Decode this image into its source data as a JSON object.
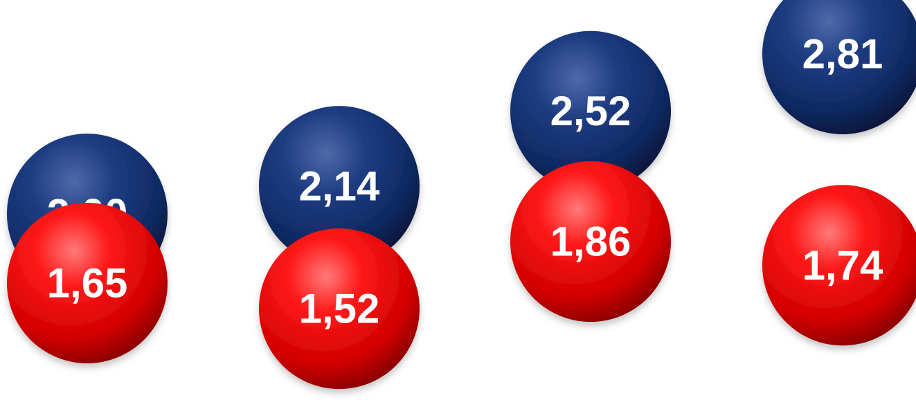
{
  "chart_data": {
    "type": "scatter",
    "categories": [
      "",
      "",
      "",
      ""
    ],
    "series": [
      {
        "values": [
          2.0,
          2.14,
          2.52,
          2.81
        ],
        "labels": [
          "2,00",
          "2,14",
          "2,52",
          "2,81"
        ],
        "color": "#0f2a63"
      },
      {
        "values": [
          1.65,
          1.52,
          1.86,
          1.74
        ],
        "labels": [
          "1,65",
          "1,52",
          "1,86",
          "1,74"
        ],
        "color": "#e60000"
      }
    ],
    "title": "",
    "xlabel": "",
    "ylabel": "",
    "grid": false,
    "legend": "none"
  }
}
